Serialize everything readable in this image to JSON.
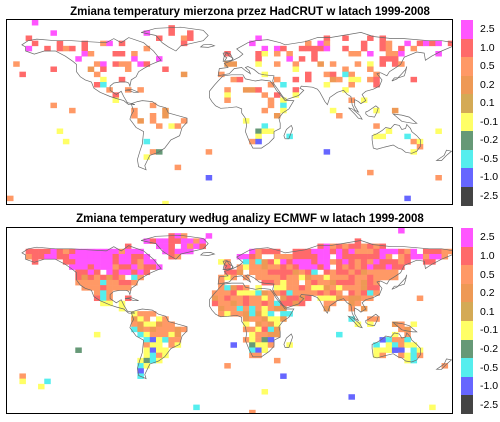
{
  "panels": [
    {
      "id": "hadcrut",
      "title": "Zmiana temperatury mierzona przez HadCRUT w latach 1999-2008"
    },
    {
      "id": "ecmwf",
      "title": "Zmiana temperatury według analizy ECMWF w latach 1999-2008"
    }
  ],
  "legend": {
    "labels": [
      "2.5",
      "1.0",
      "0.5",
      "0.2",
      "0.1",
      "-0.1",
      "-0.2",
      "-0.5",
      "-1.0",
      "-2.5"
    ],
    "colors": [
      "#ff55ff",
      "#ff6a6a",
      "#ff9966",
      "#ee9955",
      "#d4aa55",
      "#ffff66",
      "#669977",
      "#55eeee",
      "#6666ff",
      "#444444"
    ]
  }
}
